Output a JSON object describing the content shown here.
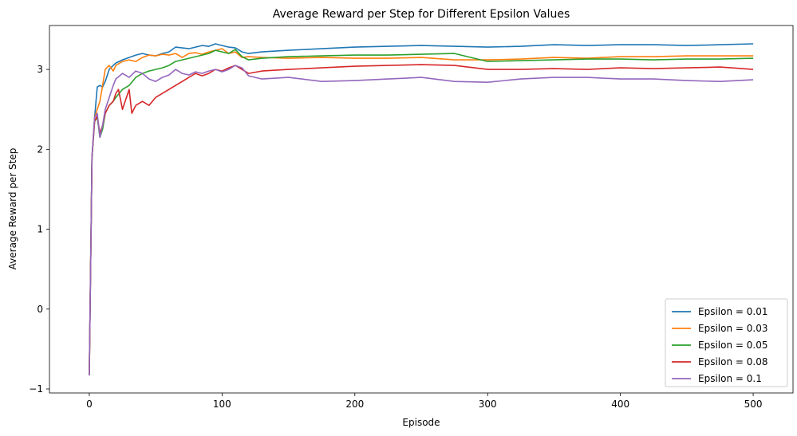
{
  "chart_data": {
    "type": "line",
    "title": "Average Reward per Step for Different Epsilon Values",
    "xlabel": "Episode",
    "ylabel": "Average Reward per Step",
    "xlim": [
      -30,
      530
    ],
    "ylim": [
      -1.05,
      3.55
    ],
    "xticks": [
      0,
      100,
      200,
      300,
      400,
      500
    ],
    "yticks": [
      -1,
      0,
      1,
      2,
      3
    ],
    "ytick_labels": [
      "−1",
      "0",
      "1",
      "2",
      "3"
    ],
    "grid": false,
    "legend": "lower-right",
    "series": [
      {
        "name": "Epsilon = 0.01",
        "color": "#1f77b4",
        "x": [
          0,
          2,
          4,
          6,
          8,
          10,
          12,
          15,
          18,
          20,
          25,
          30,
          35,
          40,
          45,
          50,
          55,
          60,
          65,
          70,
          75,
          80,
          85,
          90,
          95,
          100,
          105,
          110,
          115,
          120,
          130,
          150,
          175,
          200,
          225,
          250,
          275,
          300,
          325,
          350,
          375,
          400,
          425,
          450,
          475,
          500
        ],
        "y": [
          -0.83,
          1.9,
          2.4,
          2.78,
          2.8,
          2.78,
          2.85,
          3.0,
          3.05,
          3.08,
          3.12,
          3.15,
          3.18,
          3.2,
          3.18,
          3.17,
          3.2,
          3.22,
          3.28,
          3.27,
          3.26,
          3.28,
          3.3,
          3.29,
          3.32,
          3.3,
          3.28,
          3.27,
          3.22,
          3.2,
          3.22,
          3.24,
          3.26,
          3.28,
          3.29,
          3.3,
          3.29,
          3.28,
          3.29,
          3.31,
          3.3,
          3.31,
          3.31,
          3.3,
          3.31,
          3.32
        ]
      },
      {
        "name": "Epsilon = 0.03",
        "color": "#ff7f0e",
        "x": [
          0,
          2,
          4,
          6,
          8,
          10,
          12,
          15,
          18,
          20,
          25,
          30,
          35,
          40,
          45,
          50,
          55,
          60,
          65,
          70,
          75,
          80,
          85,
          90,
          95,
          100,
          105,
          110,
          115,
          120,
          130,
          150,
          175,
          200,
          225,
          250,
          275,
          300,
          325,
          350,
          375,
          400,
          425,
          450,
          475,
          500
        ],
        "y": [
          -0.83,
          1.9,
          2.4,
          2.5,
          2.6,
          2.8,
          3.0,
          3.05,
          2.98,
          3.05,
          3.1,
          3.12,
          3.1,
          3.15,
          3.18,
          3.17,
          3.19,
          3.18,
          3.2,
          3.15,
          3.2,
          3.21,
          3.19,
          3.22,
          3.24,
          3.26,
          3.2,
          3.22,
          3.15,
          3.16,
          3.15,
          3.14,
          3.15,
          3.14,
          3.14,
          3.15,
          3.12,
          3.12,
          3.13,
          3.15,
          3.14,
          3.16,
          3.16,
          3.17,
          3.17,
          3.17
        ]
      },
      {
        "name": "Epsilon = 0.05",
        "color": "#2ca02c",
        "x": [
          0,
          2,
          4,
          6,
          8,
          10,
          12,
          15,
          18,
          20,
          25,
          30,
          35,
          40,
          45,
          50,
          55,
          60,
          65,
          70,
          75,
          80,
          85,
          90,
          95,
          100,
          105,
          110,
          115,
          120,
          130,
          150,
          175,
          200,
          225,
          250,
          275,
          300,
          325,
          350,
          375,
          400,
          425,
          450,
          475,
          500
        ],
        "y": [
          -0.83,
          1.9,
          2.35,
          2.4,
          2.15,
          2.25,
          2.45,
          2.55,
          2.6,
          2.65,
          2.75,
          2.8,
          2.9,
          2.95,
          2.98,
          3.0,
          3.02,
          3.05,
          3.1,
          3.12,
          3.14,
          3.16,
          3.18,
          3.2,
          3.24,
          3.22,
          3.2,
          3.25,
          3.16,
          3.12,
          3.14,
          3.16,
          3.17,
          3.18,
          3.18,
          3.19,
          3.2,
          3.1,
          3.11,
          3.12,
          3.13,
          3.13,
          3.12,
          3.13,
          3.13,
          3.14
        ]
      },
      {
        "name": "Epsilon = 0.08",
        "color": "#d62728",
        "x": [
          0,
          2,
          4,
          6,
          8,
          10,
          12,
          15,
          18,
          20,
          22,
          25,
          28,
          30,
          32,
          35,
          40,
          45,
          50,
          55,
          60,
          65,
          70,
          75,
          80,
          85,
          90,
          95,
          100,
          105,
          110,
          115,
          120,
          130,
          150,
          175,
          200,
          225,
          250,
          275,
          300,
          325,
          350,
          375,
          400,
          425,
          450,
          475,
          500
        ],
        "y": [
          -0.83,
          1.9,
          2.35,
          2.42,
          2.2,
          2.3,
          2.45,
          2.55,
          2.6,
          2.7,
          2.75,
          2.5,
          2.65,
          2.75,
          2.45,
          2.55,
          2.6,
          2.55,
          2.65,
          2.7,
          2.75,
          2.8,
          2.85,
          2.9,
          2.95,
          2.92,
          2.95,
          3.0,
          2.98,
          3.02,
          3.05,
          3.0,
          2.95,
          2.98,
          3.0,
          3.02,
          3.04,
          3.05,
          3.06,
          3.05,
          3.0,
          3.0,
          3.01,
          3.0,
          3.02,
          3.01,
          3.02,
          3.03,
          3.0
        ]
      },
      {
        "name": "Epsilon = 0.1",
        "color": "#9467bd",
        "x": [
          0,
          2,
          4,
          6,
          8,
          10,
          12,
          15,
          18,
          20,
          25,
          30,
          35,
          40,
          45,
          50,
          55,
          60,
          65,
          70,
          75,
          80,
          85,
          90,
          95,
          100,
          105,
          110,
          115,
          120,
          130,
          150,
          175,
          200,
          225,
          250,
          275,
          300,
          325,
          350,
          375,
          400,
          425,
          450,
          475,
          500
        ],
        "y": [
          -0.83,
          1.9,
          2.4,
          2.45,
          2.15,
          2.3,
          2.5,
          2.65,
          2.8,
          2.88,
          2.95,
          2.9,
          2.98,
          2.95,
          2.88,
          2.85,
          2.9,
          2.93,
          3.0,
          2.95,
          2.93,
          2.97,
          2.95,
          2.98,
          3.0,
          2.97,
          3.0,
          3.05,
          3.02,
          2.92,
          2.88,
          2.9,
          2.85,
          2.86,
          2.88,
          2.9,
          2.85,
          2.84,
          2.88,
          2.9,
          2.9,
          2.88,
          2.88,
          2.86,
          2.85,
          2.87
        ]
      }
    ]
  }
}
